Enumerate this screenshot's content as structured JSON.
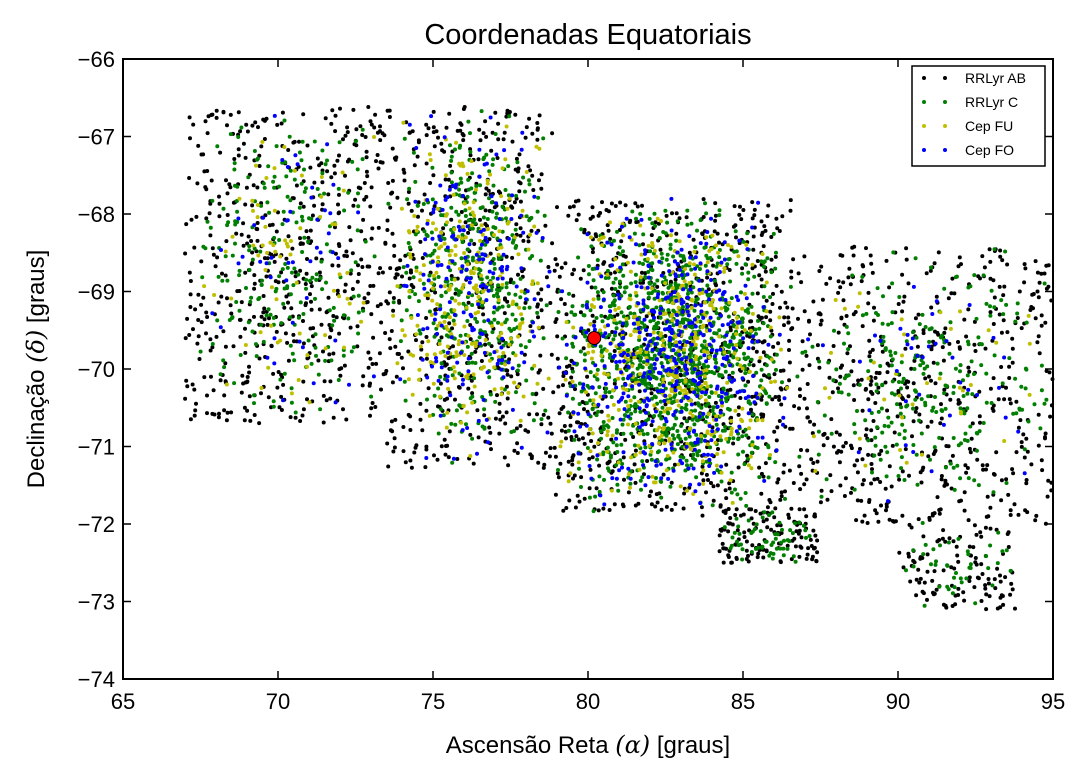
{
  "chart_data": {
    "type": "scatter",
    "title": "Coordenadas Equatoriais",
    "xlabel": {
      "prefix": "Ascensão Reta ",
      "symbol": "(α)",
      "suffix": " [graus]"
    },
    "ylabel": {
      "prefix": "Declinação ",
      "symbol": "(δ)",
      "suffix": " [graus]"
    },
    "xlim": [
      65,
      95
    ],
    "ylim": [
      -74,
      -66
    ],
    "xticks": [
      65,
      70,
      75,
      80,
      85,
      90,
      95
    ],
    "yticks": [
      -66,
      -67,
      -68,
      -69,
      -70,
      -71,
      -72,
      -73,
      -74
    ],
    "ytick_labels": [
      "−66",
      "−67",
      "−68",
      "−69",
      "−70",
      "−71",
      "−72",
      "−73",
      "−74"
    ],
    "grid": false,
    "legend_position": "top-right",
    "series": [
      {
        "name": "RRLyr AB",
        "color": "#000000",
        "regions": [
          {
            "x": [
              67.0,
              73.5
            ],
            "y": [
              -70.7,
              -66.6
            ],
            "n": 520
          },
          {
            "x": [
              73.5,
              78.9
            ],
            "y": [
              -71.3,
              -66.6
            ],
            "n": 460
          },
          {
            "x": [
              78.9,
              86.6
            ],
            "y": [
              -71.9,
              -67.8
            ],
            "n": 720
          },
          {
            "x": [
              84.2,
              87.4
            ],
            "y": [
              -72.5,
              -71.8
            ],
            "n": 120
          },
          {
            "x": [
              86.6,
              95.0
            ],
            "y": [
              -72.0,
              -68.4
            ],
            "n": 520
          },
          {
            "x": [
              90.0,
              93.8
            ],
            "y": [
              -73.1,
              -72.0
            ],
            "n": 110
          }
        ]
      },
      {
        "name": "RRLyr C",
        "color": "#007f00",
        "regions": [
          {
            "x": [
              67.0,
              73.5
            ],
            "y": [
              -70.7,
              -66.6
            ],
            "n": 220
          },
          {
            "x": [
              73.5,
              78.9
            ],
            "y": [
              -71.3,
              -66.6
            ],
            "n": 420
          },
          {
            "x": [
              78.9,
              86.6
            ],
            "y": [
              -71.9,
              -67.8
            ],
            "n": 1100
          },
          {
            "x": [
              84.2,
              87.4
            ],
            "y": [
              -72.5,
              -71.8
            ],
            "n": 60
          },
          {
            "x": [
              86.6,
              95.0
            ],
            "y": [
              -72.0,
              -68.4
            ],
            "n": 260
          },
          {
            "x": [
              90.0,
              93.8
            ],
            "y": [
              -73.1,
              -72.0
            ],
            "n": 40
          }
        ]
      },
      {
        "name": "Cep FU",
        "color": "#bfbf00",
        "regions": [
          {
            "x": [
              67.0,
              73.5
            ],
            "y": [
              -70.7,
              -66.6
            ],
            "n": 70
          },
          {
            "x": [
              73.5,
              78.9
            ],
            "y": [
              -71.3,
              -66.6
            ],
            "n": 260
          },
          {
            "x": [
              78.9,
              86.6
            ],
            "y": [
              -71.9,
              -67.8
            ],
            "n": 420
          },
          {
            "x": [
              86.6,
              95.0
            ],
            "y": [
              -72.0,
              -68.4
            ],
            "n": 40
          }
        ]
      },
      {
        "name": "Cep FO",
        "color": "#0000ff",
        "regions": [
          {
            "x": [
              67.0,
              73.5
            ],
            "y": [
              -70.7,
              -66.6
            ],
            "n": 50
          },
          {
            "x": [
              73.5,
              78.9
            ],
            "y": [
              -71.3,
              -66.6
            ],
            "n": 180
          },
          {
            "x": [
              78.9,
              86.6
            ],
            "y": [
              -71.9,
              -67.8
            ],
            "n": 420
          },
          {
            "x": [
              86.6,
              95.0
            ],
            "y": [
              -72.0,
              -68.4
            ],
            "n": 40
          }
        ]
      }
    ],
    "highlight": {
      "x": 80.2,
      "y": -69.6,
      "color": "#ff0000"
    }
  }
}
